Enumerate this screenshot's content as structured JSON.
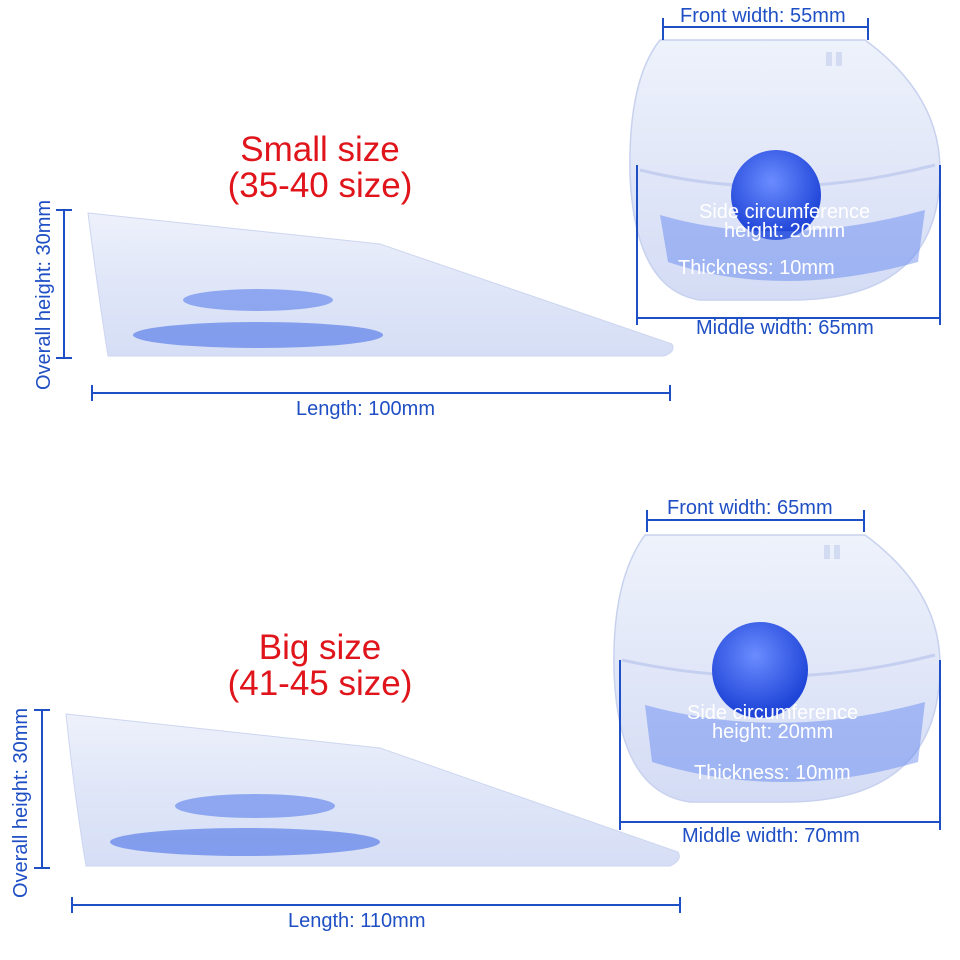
{
  "small": {
    "title_line1": "Small size",
    "title_line2": "(35-40 size)",
    "overall_height": "Overall height: 30mm",
    "length": "Length: 100mm",
    "front_width": "Front width: 55mm",
    "side_circumference_line1": "Side circumference",
    "side_circumference_line2": "height: 20mm",
    "thickness": "Thickness: 10mm",
    "middle_width": "Middle width: 65mm"
  },
  "big": {
    "title_line1": "Big size",
    "title_line2": "(41-45 size)",
    "overall_height": "Overall height: 30mm",
    "length": "Length: 110mm",
    "front_width": "Front width: 65mm",
    "side_circumference_line1": "Side circumference",
    "side_circumference_line2": "height: 20mm",
    "thickness": "Thickness: 10mm",
    "middle_width": "Middle width: 70mm"
  },
  "colors": {
    "title": "#e0141b",
    "dimension": "#1f4fc4",
    "silicone": "#e2e8f8",
    "gel": "#3c66e6"
  },
  "icons": {
    "wedge": "silicone-heel-wedge-side-view",
    "cup": "silicone-heel-cup-top-view"
  }
}
